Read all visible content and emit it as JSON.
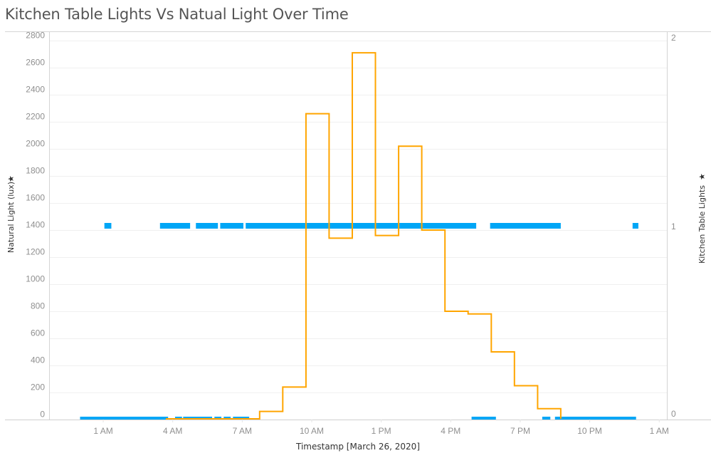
{
  "title": "Kitchen Table Lights Vs Natual Light Over Time",
  "chart_data": {
    "type": "line",
    "title": "Kitchen Table Lights Vs Natual Light Over Time",
    "xlabel": "Timestamp [March 26, 2020]",
    "ylabel": "Natural Light (lux)",
    "y2label": "Kitchen Table Lights",
    "x_ticks": [
      "1 AM",
      "4 AM",
      "7 AM",
      "10 AM",
      "1 PM",
      "4 PM",
      "7 PM",
      "10 PM",
      "1 AM"
    ],
    "y_ticks": [
      0,
      200,
      400,
      600,
      800,
      1000,
      1200,
      1400,
      1600,
      1800,
      2000,
      2200,
      2400,
      2600,
      2800
    ],
    "y2_ticks": [
      0,
      1,
      2
    ],
    "ylim": [
      0,
      2850
    ],
    "y2lim": [
      0,
      2
    ],
    "grid": true,
    "colors": {
      "natural_light": "#FFA500",
      "kitchen_lights": "#00A6F6"
    },
    "series": [
      {
        "name": "Natural Light (lux)",
        "axis": "left",
        "style": "step",
        "x_hours": [
          3.7,
          7.75,
          8.75,
          9.75,
          10.75,
          11.75,
          12.75,
          13.75,
          14.75,
          15.75,
          16.75,
          17.75,
          18.75,
          19.75,
          20.75
        ],
        "values": [
          0,
          60,
          240,
          2260,
          1340,
          2710,
          1360,
          2020,
          1400,
          800,
          780,
          500,
          250,
          80,
          0
        ]
      },
      {
        "name": "Kitchen Table Lights",
        "axis": "right",
        "style": "segments",
        "segments_on": [
          [
            1.05,
            1.35
          ],
          [
            3.45,
            4.75
          ],
          [
            5.0,
            5.95
          ],
          [
            6.05,
            7.05
          ],
          [
            7.15,
            17.1
          ],
          [
            17.7,
            20.75
          ],
          [
            23.85,
            24.1
          ]
        ],
        "segments_off": [
          [
            0.0,
            3.8
          ],
          [
            4.1,
            4.4
          ],
          [
            4.45,
            5.7
          ],
          [
            5.8,
            6.1
          ],
          [
            6.2,
            6.5
          ],
          [
            6.6,
            7.3
          ],
          [
            16.9,
            17.95
          ],
          [
            19.95,
            20.3
          ],
          [
            20.5,
            24.0
          ]
        ]
      }
    ]
  }
}
